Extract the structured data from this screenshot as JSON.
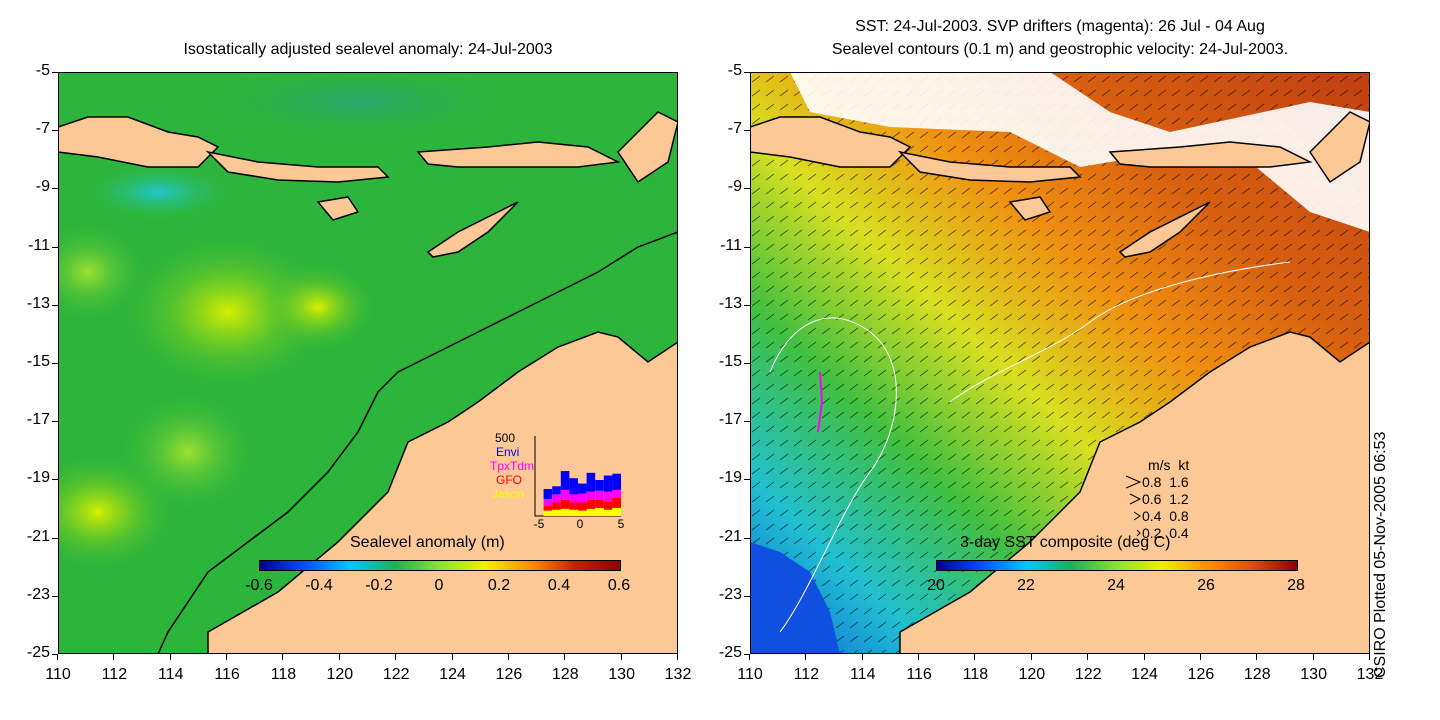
{
  "left_panel": {
    "title": "Isostatically adjusted sealevel anomaly: 24-Jul-2003",
    "colorbar": {
      "label": "Sealevel anomaly (m)",
      "ticks": [
        "-0.6",
        "-0.4",
        "-0.2",
        "0",
        "0.2",
        "0.4",
        "0.6"
      ],
      "colors": [
        "#00008f",
        "#0050ff",
        "#00c8ff",
        "#20b050",
        "#8ae234",
        "#f0f000",
        "#ff9000",
        "#c82000",
        "#8b0000"
      ]
    },
    "inset": {
      "ymax_label": "500",
      "legend": [
        {
          "name": "Envi",
          "color": "#0000ff"
        },
        {
          "name": "TpxTdm",
          "color": "#ff00ff"
        },
        {
          "name": "GFO",
          "color": "#ff0000"
        },
        {
          "name": "Jason",
          "color": "#ffff00"
        }
      ],
      "xticks": [
        "-5",
        "0",
        "5"
      ],
      "xlim": [
        -5,
        5
      ],
      "bars": [
        {
          "day": -4,
          "Jason": 30,
          "GFO": 25,
          "TpxTdm": 40,
          "Envi": 55
        },
        {
          "day": -3,
          "Jason": 35,
          "GFO": 40,
          "TpxTdm": 45,
          "Envi": 45
        },
        {
          "day": -2,
          "Jason": 40,
          "GFO": 50,
          "TpxTdm": 55,
          "Envi": 105
        },
        {
          "day": -1,
          "Jason": 35,
          "GFO": 40,
          "TpxTdm": 45,
          "Envi": 90
        },
        {
          "day": 0,
          "Jason": 30,
          "GFO": 45,
          "TpxTdm": 50,
          "Envi": 55
        },
        {
          "day": 1,
          "Jason": 40,
          "GFO": 50,
          "TpxTdm": 45,
          "Envi": 105
        },
        {
          "day": 2,
          "Jason": 45,
          "GFO": 45,
          "TpxTdm": 50,
          "Envi": 60
        },
        {
          "day": 3,
          "Jason": 35,
          "GFO": 45,
          "TpxTdm": 55,
          "Envi": 90
        },
        {
          "day": 4,
          "Jason": 45,
          "GFO": 55,
          "TpxTdm": 45,
          "Envi": 90
        }
      ]
    }
  },
  "right_panel": {
    "title_line1": "SST: 24-Jul-2003. SVP drifters (magenta): 26 Jul - 04 Aug",
    "title_line2": "Sealevel contours (0.1 m) and geostrophic velocity: 24-Jul-2003.",
    "colorbar": {
      "label": "3-day SST composite (deg C)",
      "ticks": [
        "20",
        "22",
        "24",
        "26",
        "28"
      ],
      "colors": [
        "#00008f",
        "#0050ff",
        "#00c8ff",
        "#20b050",
        "#8ae234",
        "#f0f000",
        "#ff9000",
        "#d85010",
        "#8b0000"
      ]
    },
    "velocity_legend": {
      "header": "m/s  kt",
      "rows": [
        "0.8  1.6",
        "0.6  1.2",
        "0.4  0.8",
        "0.2  0.4"
      ]
    }
  },
  "axes": {
    "x_ticks": [
      "110",
      "112",
      "114",
      "116",
      "118",
      "120",
      "122",
      "124",
      "126",
      "128",
      "130",
      "132"
    ],
    "y_ticks": [
      "-5",
      "-7",
      "-9",
      "-11",
      "-13",
      "-15",
      "-17",
      "-19",
      "-21",
      "-23",
      "-25"
    ],
    "xlim": [
      110,
      132
    ],
    "ylim": [
      -25,
      -5
    ]
  },
  "credit": "CSIRO Plotted 05-Nov-2005 06:53",
  "colors": {
    "land": "#fcc896",
    "coast": "#000000",
    "sla_background": "#2db53b",
    "sst_warm": "#d9620f"
  }
}
